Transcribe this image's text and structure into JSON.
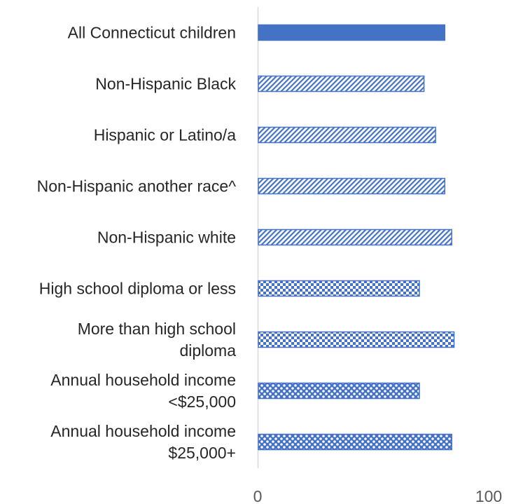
{
  "chart_data": {
    "type": "bar",
    "orientation": "horizontal",
    "categories": [
      "All Connecticut children",
      "Non-Hispanic Black",
      "Hispanic or Latino/a",
      "Non-Hispanic another race^",
      "Non-Hispanic white",
      "High school diploma or less",
      "More than high school diploma",
      "Annual household income <$25,000",
      "Annual household income $25,000+"
    ],
    "category_label_lines": [
      [
        "All Connecticut children"
      ],
      [
        "Non-Hispanic Black"
      ],
      [
        "Hispanic or Latino/a"
      ],
      [
        "Non-Hispanic another race^"
      ],
      [
        "Non-Hispanic white"
      ],
      [
        "High school diploma or less"
      ],
      [
        "More than high school",
        "diploma"
      ],
      [
        "Annual household income",
        "<$25,000"
      ],
      [
        "Annual household income",
        "$25,000+"
      ]
    ],
    "values": [
      81,
      72,
      77,
      81,
      84,
      70,
      85,
      70,
      84
    ],
    "patterns": [
      "solid",
      "diagonal",
      "diagonal",
      "diagonal",
      "diagonal",
      "checker",
      "checker",
      "dotted-grid",
      "dotted-grid"
    ],
    "xlim": [
      0,
      100
    ],
    "xticks": [
      "0",
      "100"
    ],
    "title": "",
    "xlabel": "",
    "ylabel": "",
    "grid": false,
    "legend": "none",
    "colors": {
      "bar": "#4472C4",
      "axis": "#d9d9d9",
      "label": "#262626",
      "tick": "#595959"
    }
  }
}
